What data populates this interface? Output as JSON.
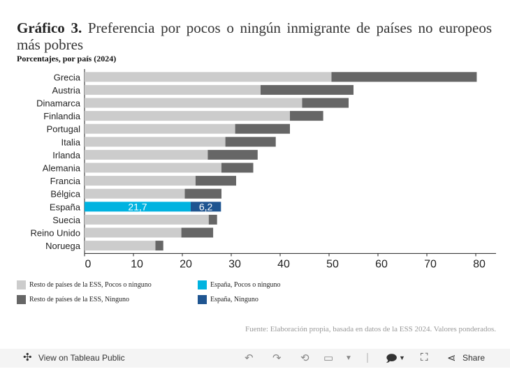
{
  "title_bold": "Gráfico 3.",
  "title_rest": " Preferencia por pocos o ningún inmigrante de países no europeos más pobres",
  "subtitle": "Porcentajes, por país (2024)",
  "colors": {
    "rest_pocos": "#cccccc",
    "rest_ninguno": "#666666",
    "spain_pocos": "#00b3e0",
    "spain_ninguno": "#1f5591"
  },
  "chart_data": {
    "type": "bar",
    "orientation": "horizontal",
    "stacked": true,
    "categories": [
      "Grecia",
      "Austria",
      "Dinamarca",
      "Finlandia",
      "Portugal",
      "Italia",
      "Irlanda",
      "Alemania",
      "Francia",
      "Bélgica",
      "España",
      "Suecia",
      "Reino Unido",
      "Noruega"
    ],
    "series": [
      {
        "name": "Pocos o ninguno",
        "values": [
          50.5,
          36.0,
          44.5,
          42.0,
          30.8,
          28.8,
          25.2,
          28.0,
          22.7,
          20.5,
          21.7,
          25.4,
          19.8,
          14.5
        ]
      },
      {
        "name": "Ninguno",
        "values": [
          29.7,
          19.0,
          9.5,
          6.8,
          11.2,
          10.3,
          10.2,
          6.5,
          8.3,
          7.5,
          6.2,
          1.7,
          6.5,
          1.6
        ]
      }
    ],
    "highlight": "España",
    "data_labels": {
      "España": [
        "21,7",
        "6,2"
      ]
    },
    "xlim": [
      0,
      85
    ],
    "xticks": [
      "0",
      "10",
      "20",
      "30",
      "40",
      "50",
      "60",
      "70",
      "80"
    ]
  },
  "legend": [
    {
      "label": "Resto de países de la ESS, Pocos o ninguno",
      "color_key": "rest_pocos"
    },
    {
      "label": "España, Pocos o ninguno",
      "color_key": "spain_pocos"
    },
    {
      "label": "Resto de países de la ESS, Ninguno",
      "color_key": "rest_ninguno"
    },
    {
      "label": "España, Ninguno",
      "color_key": "spain_ninguno"
    }
  ],
  "source": "Fuente: Elaboración propia, basada en datos de la ESS 2024. Valores ponderados.",
  "footer": {
    "view_label": "View on Tableau Public",
    "share_label": "Share"
  }
}
